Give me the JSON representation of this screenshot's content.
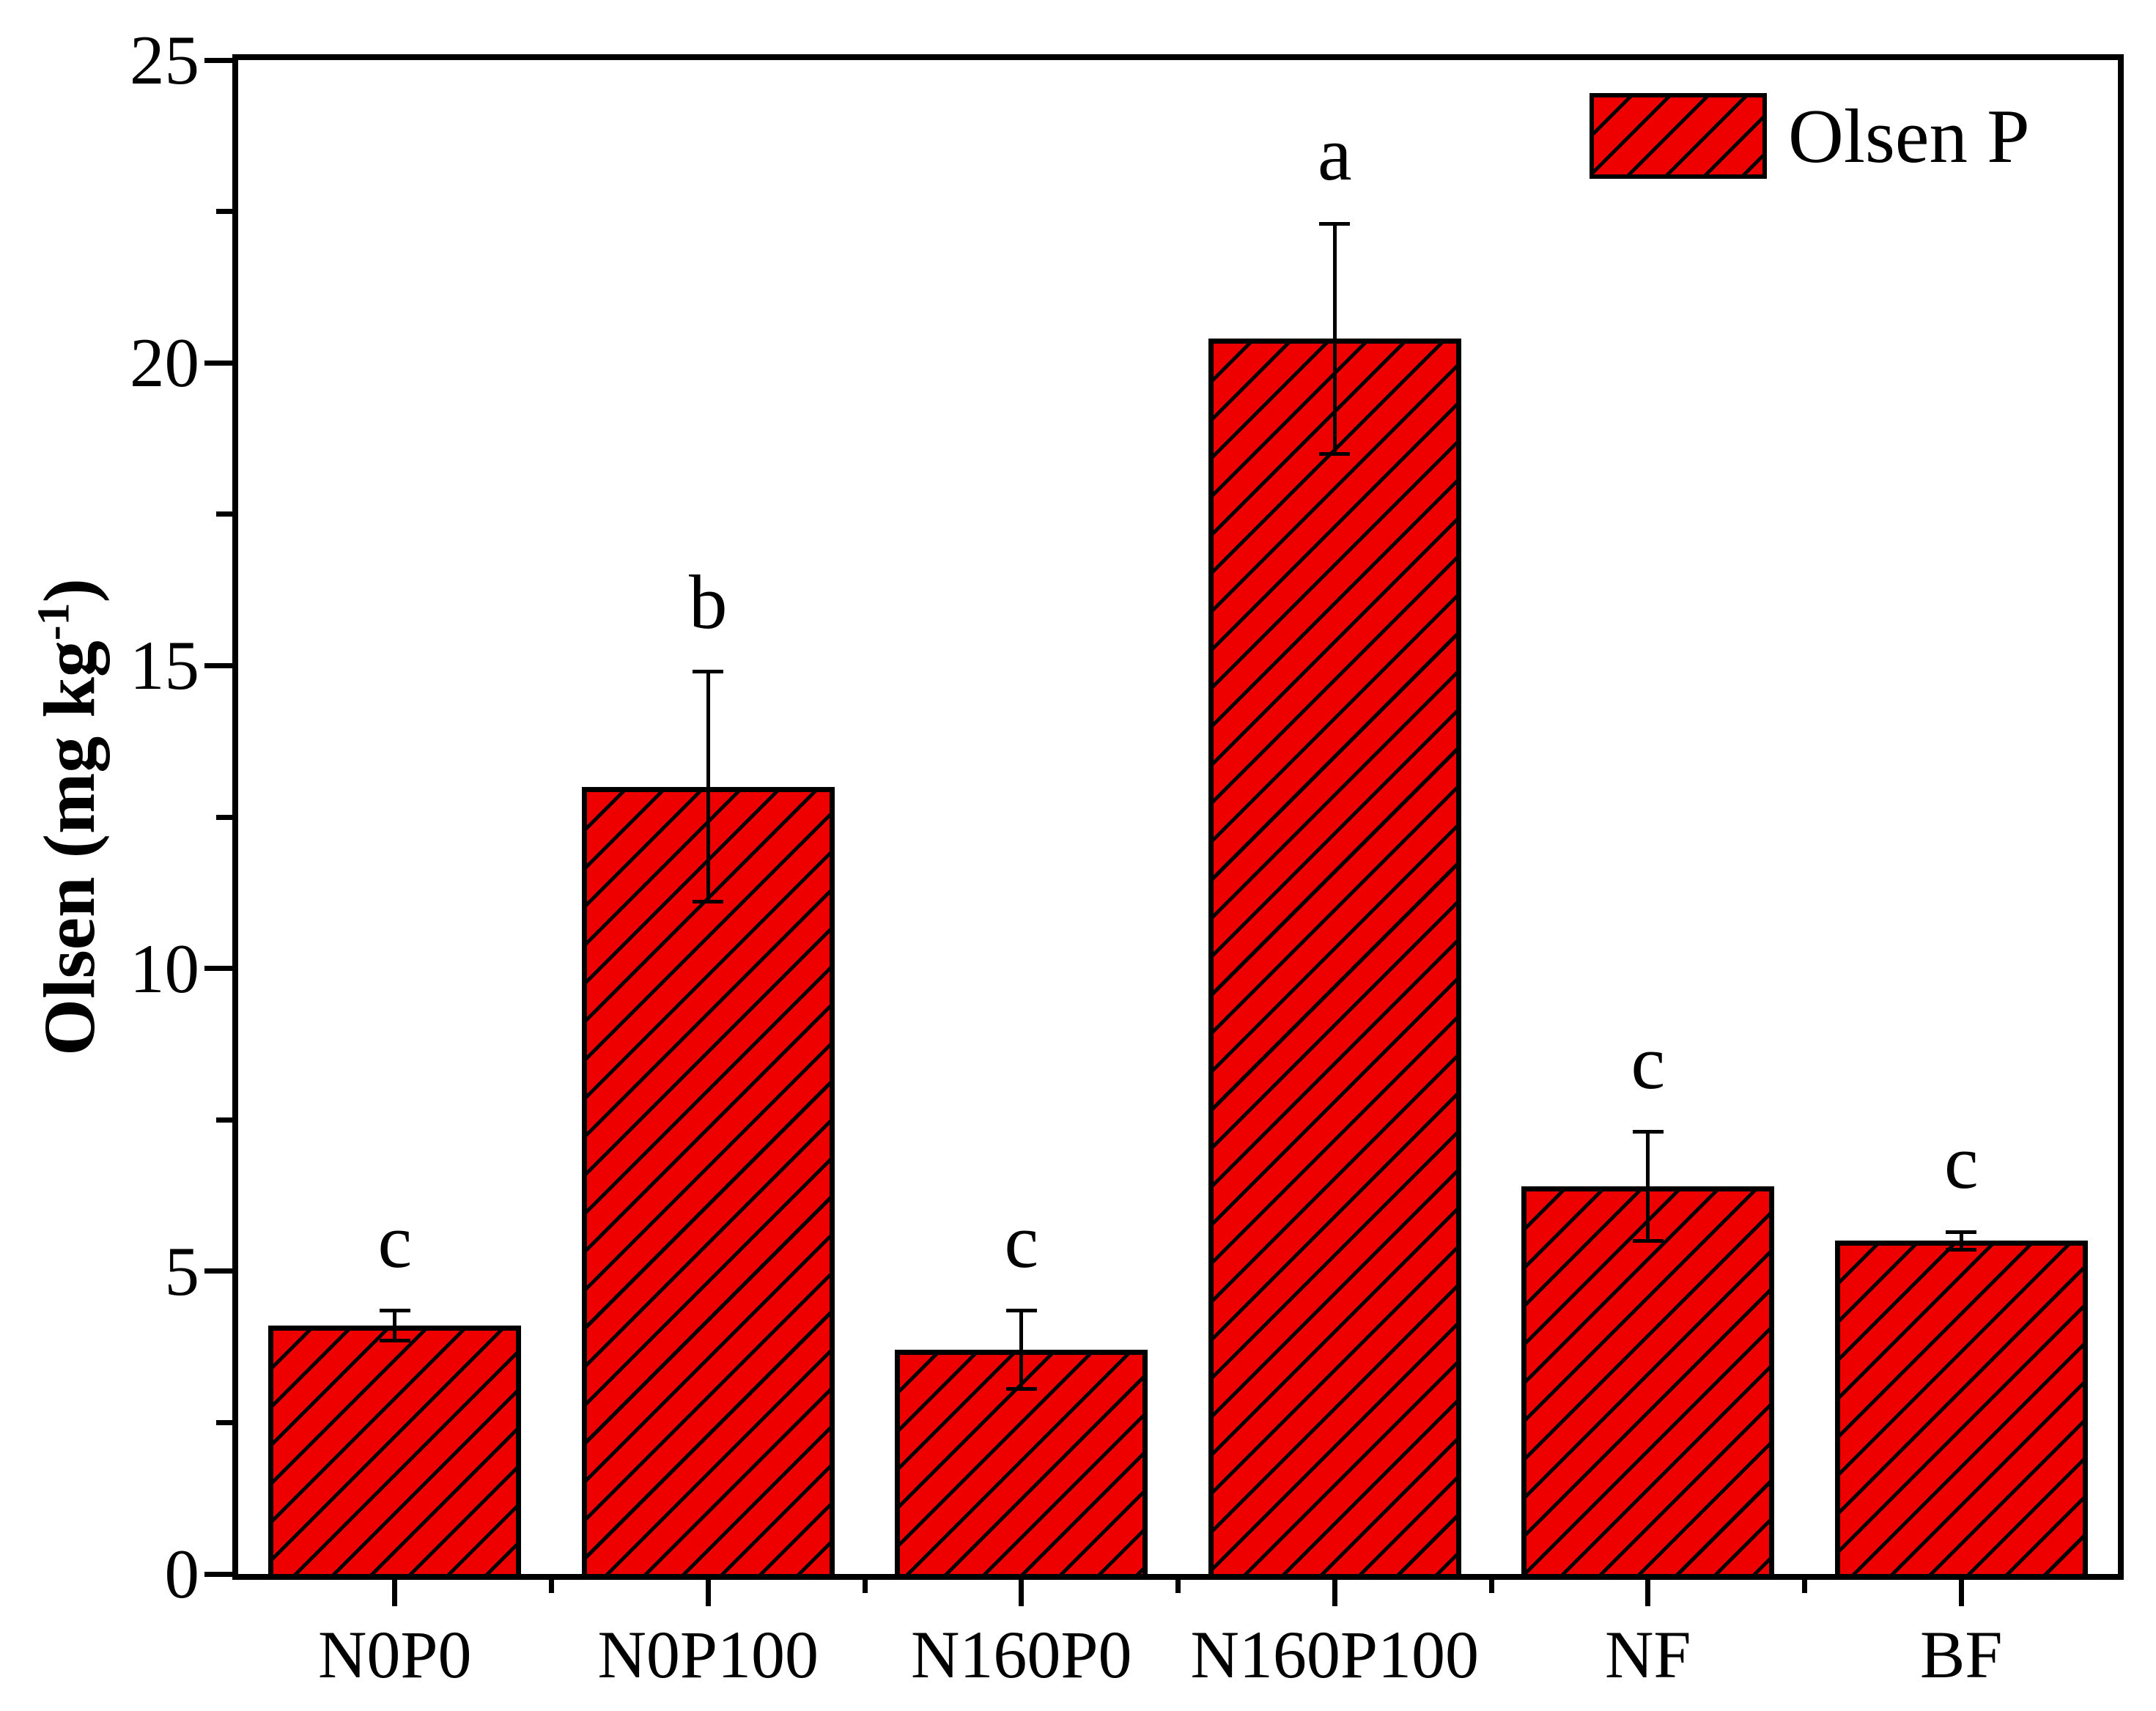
{
  "chart_data": {
    "type": "bar",
    "title": "",
    "categories": [
      "N0P0",
      "N0P100",
      "N160P0",
      "N160P100",
      "NF",
      "BF"
    ],
    "series": [
      {
        "name": "Olsen P",
        "values": [
          4.1,
          13.0,
          3.7,
          20.4,
          6.4,
          5.5
        ],
        "errors": [
          0.25,
          1.9,
          0.65,
          1.9,
          0.9,
          0.15
        ],
        "sig_letters": [
          "c",
          "b",
          "c",
          "a",
          "c",
          "c"
        ]
      }
    ],
    "xlabel": "",
    "ylabel": "Olsen (mg kg⁻¹)",
    "ylabel_parts": {
      "prefix": "Olsen (mg kg",
      "superscript": "-1",
      "suffix": ")"
    },
    "ylim": [
      0,
      25
    ],
    "y_major_ticks": [
      0,
      5,
      10,
      15,
      20,
      25
    ],
    "y_minor_ticks": [
      2.5,
      7.5,
      12.5,
      17.5,
      22.5
    ],
    "grid": false,
    "legend_position": "top-right",
    "bar_color": "#ee0000",
    "hatch_color": "#000000",
    "hatch_style": "forward-diagonal",
    "frame_color": "#000000",
    "background_color": "#ffffff"
  }
}
